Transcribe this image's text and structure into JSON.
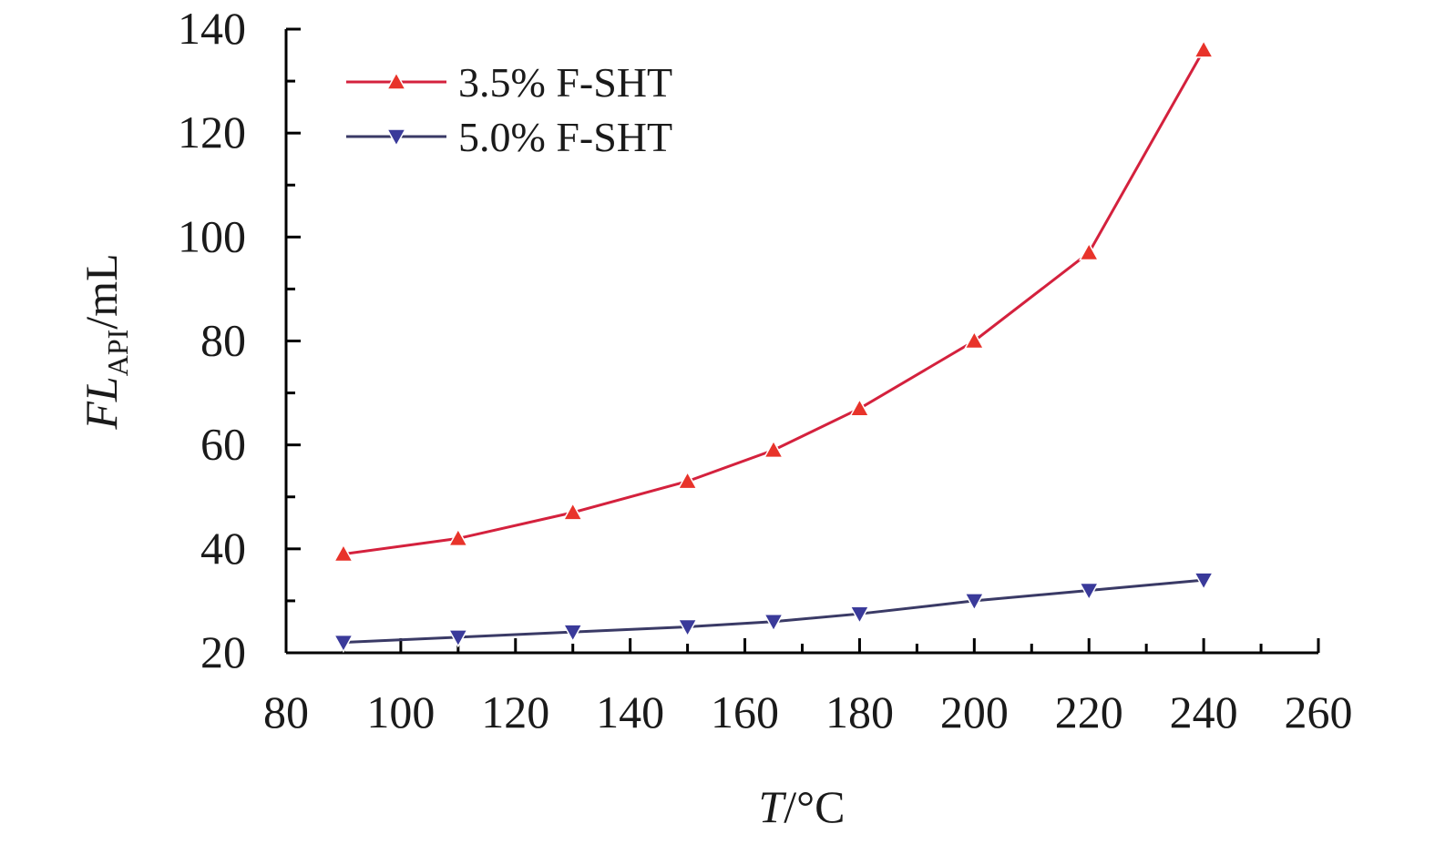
{
  "chart_data": {
    "type": "line",
    "xlabel_italic": "T",
    "xlabel_rest": "/°C",
    "ylabel_italic": "FL",
    "ylabel_sub": "API",
    "ylabel_rest": "/mL",
    "xlim": [
      80,
      260
    ],
    "ylim": [
      20,
      140
    ],
    "xticks": [
      80,
      100,
      120,
      140,
      160,
      180,
      200,
      220,
      240,
      260
    ],
    "yticks": [
      20,
      40,
      60,
      80,
      100,
      120,
      140
    ],
    "grid": false,
    "legend_position": "top-left",
    "x": [
      90,
      110,
      130,
      150,
      165,
      180,
      200,
      220,
      240
    ],
    "series": [
      {
        "name": "3.5% F-SHT",
        "marker": "triangle-up",
        "line_color": "#d4213d",
        "marker_color": "#e8332a",
        "values": [
          39,
          42,
          47,
          53,
          59,
          67,
          80,
          97,
          136
        ]
      },
      {
        "name": "5.0% F-SHT",
        "marker": "triangle-down",
        "line_color": "#3a3a66",
        "marker_color": "#3a3a9a",
        "values": [
          22,
          23,
          24,
          25,
          26,
          27.5,
          30,
          32,
          34
        ]
      }
    ]
  }
}
